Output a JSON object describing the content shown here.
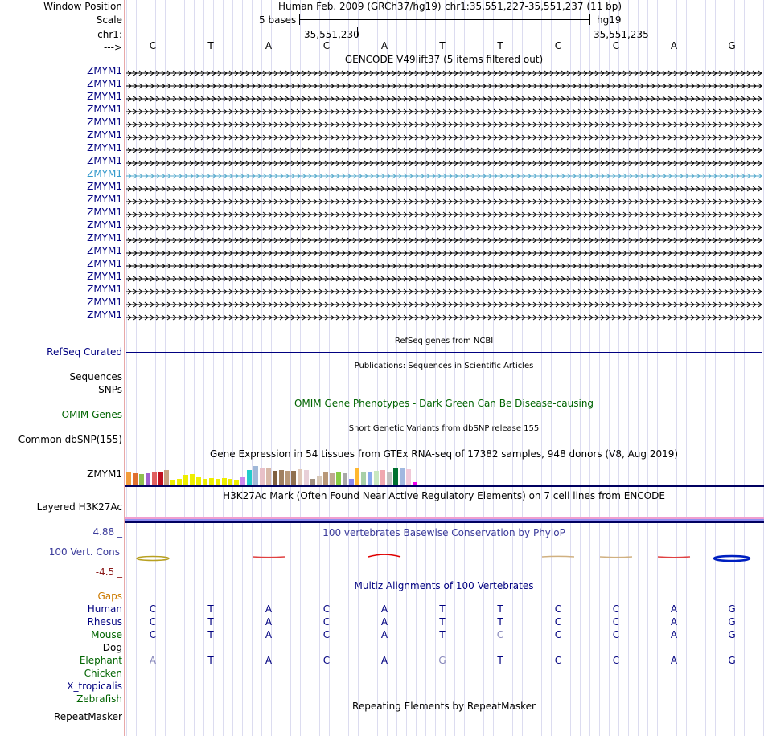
{
  "header": {
    "window_position_label": "Window Position",
    "scale_label": "Scale",
    "chrom_label": "chr1:",
    "strand_label": "--->",
    "assembly_text": "Human Feb. 2009 (GRCh37/hg19)",
    "position_text": "chr1:35,551,227-35,551,237 (11 bp)",
    "scale_text": "5 bases",
    "scale_assembly": "hg19",
    "tick_left": "35,551,230",
    "tick_right": "35,551,235"
  },
  "sequence": [
    "C",
    "T",
    "A",
    "C",
    "A",
    "T",
    "T",
    "C",
    "C",
    "A",
    "G"
  ],
  "gencode": {
    "title": "GENCODE V49lift37 (5 items filtered out)",
    "items": [
      "ZMYM1",
      "ZMYM1",
      "ZMYM1",
      "ZMYM1",
      "ZMYM1",
      "ZMYM1",
      "ZMYM1",
      "ZMYM1",
      "ZMYM1",
      "ZMYM1",
      "ZMYM1",
      "ZMYM1",
      "ZMYM1",
      "ZMYM1",
      "ZMYM1",
      "ZMYM1",
      "ZMYM1",
      "ZMYM1",
      "ZMYM1",
      "ZMYM1"
    ],
    "highlighted_index": 8
  },
  "refseq": {
    "title": "RefSeq genes from NCBI",
    "label": "RefSeq Curated"
  },
  "publications": {
    "title": "Publications: Sequences in Scientific Articles",
    "label_sequences": "Sequences",
    "label_snps": "SNPs"
  },
  "omim": {
    "title": "OMIM Gene Phenotypes - Dark Green Can Be Disease-causing",
    "label": "OMIM Genes"
  },
  "dbsnp": {
    "title": "Short Genetic Variants from dbSNP release 155",
    "label": "Common dbSNP(155)"
  },
  "gtex": {
    "title": "Gene Expression in 54 tissues from GTEx RNA-seq of 17382 samples, 948 donors (V8, Aug 2019)",
    "label": "ZMYM1",
    "bars": [
      {
        "color": "#f39c3b",
        "level": 0.5
      },
      {
        "color": "#e07030",
        "level": 0.48
      },
      {
        "color": "#8fbf50",
        "level": 0.44
      },
      {
        "color": "#a060d0",
        "level": 0.46
      },
      {
        "color": "#e06060",
        "level": 0.5
      },
      {
        "color": "#c01020",
        "level": 0.5
      },
      {
        "color": "#c8a080",
        "level": 0.6
      },
      {
        "color": "#eeee00",
        "level": 0.2
      },
      {
        "color": "#eeee00",
        "level": 0.26
      },
      {
        "color": "#eeee00",
        "level": 0.4
      },
      {
        "color": "#eeee00",
        "level": 0.44
      },
      {
        "color": "#eeee00",
        "level": 0.3
      },
      {
        "color": "#eeee00",
        "level": 0.24
      },
      {
        "color": "#eeee00",
        "level": 0.28
      },
      {
        "color": "#eeee00",
        "level": 0.24
      },
      {
        "color": "#eeee00",
        "level": 0.28
      },
      {
        "color": "#eeee00",
        "level": 0.24
      },
      {
        "color": "#eeee00",
        "level": 0.2
      },
      {
        "color": "#cc88ee",
        "level": 0.3
      },
      {
        "color": "#22cccc",
        "level": 0.58
      },
      {
        "color": "#a0b8d8",
        "level": 0.74
      },
      {
        "color": "#e8c0c8",
        "level": 0.7
      },
      {
        "color": "#d8b8a8",
        "level": 0.66
      },
      {
        "color": "#806040",
        "level": 0.56
      },
      {
        "color": "#a08060",
        "level": 0.6
      },
      {
        "color": "#b89878",
        "level": 0.56
      },
      {
        "color": "#907050",
        "level": 0.56
      },
      {
        "color": "#e0c8b8",
        "level": 0.62
      },
      {
        "color": "#e8d0d8",
        "level": 0.6
      },
      {
        "color": "#a09080",
        "level": 0.26
      },
      {
        "color": "#d8c8b8",
        "level": 0.38
      },
      {
        "color": "#b89878",
        "level": 0.5
      },
      {
        "color": "#c0a890",
        "level": 0.46
      },
      {
        "color": "#88cc44",
        "level": 0.52
      },
      {
        "color": "#a8a8a8",
        "level": 0.46
      },
      {
        "color": "#8888ee",
        "level": 0.26
      },
      {
        "color": "#ffb830",
        "level": 0.68
      },
      {
        "color": "#a8d0a8",
        "level": 0.54
      },
      {
        "color": "#88aaee",
        "level": 0.5
      },
      {
        "color": "#c8e8c0",
        "level": 0.56
      },
      {
        "color": "#f0a8b0",
        "level": 0.6
      },
      {
        "color": "#c0c0c0",
        "level": 0.5
      },
      {
        "color": "#007030",
        "level": 0.68
      },
      {
        "color": "#a0b8e0",
        "level": 0.66
      },
      {
        "color": "#f0c8d8",
        "level": 0.64
      },
      {
        "color": "#ee00ee",
        "level": 0.14
      }
    ]
  },
  "h3k27ac": {
    "title": "H3K27Ac Mark (Often Found Near Active Regulatory Elements) on 7 cell lines from ENCODE",
    "label": "Layered H3K27Ac"
  },
  "cons": {
    "title": "100 vertebrates Basewise Conservation by PhyloP",
    "label": "100 Vert. Cons",
    "max": "4.88 _",
    "min": "-4.5 _",
    "scores": [
      0.5,
      0.0,
      -0.1,
      0.0,
      0.8,
      0.0,
      0.0,
      0.05,
      -0.1,
      -0.2,
      0.9
    ],
    "colors": [
      "#b8a020",
      "#ffffff",
      "#e04040",
      "#ffffff",
      "#e00000",
      "#ffffff",
      "#ffffff",
      "#d0b080",
      "#d0b080",
      "#e04040",
      "#0020c0"
    ]
  },
  "multiz": {
    "title": "Multiz Alignments of 100 Vertebrates",
    "gaps_label": "Gaps",
    "species": [
      {
        "name": "Human",
        "bases": [
          "C",
          "T",
          "A",
          "C",
          "A",
          "T",
          "T",
          "C",
          "C",
          "A",
          "G"
        ]
      },
      {
        "name": "Rhesus",
        "bases": [
          "C",
          "T",
          "A",
          "C",
          "A",
          "T",
          "T",
          "C",
          "C",
          "A",
          "G"
        ]
      },
      {
        "name": "Mouse",
        "bases": [
          "C",
          "T",
          "A",
          "C",
          "A",
          "T",
          "C",
          "C",
          "C",
          "A",
          "G"
        ]
      },
      {
        "name": "Dog",
        "bases": [
          "-",
          "-",
          "-",
          "-",
          "-",
          "-",
          "-",
          "-",
          "-",
          "-",
          "-"
        ]
      },
      {
        "name": "Elephant",
        "bases": [
          "A",
          "T",
          "A",
          "C",
          "A",
          "G",
          "T",
          "C",
          "C",
          "A",
          "G"
        ]
      },
      {
        "name": "Chicken",
        "bases": []
      },
      {
        "name": "X_tropicalis",
        "bases": []
      },
      {
        "name": "Zebrafish",
        "bases": []
      }
    ]
  },
  "repeatmasker": {
    "title": "Repeating Elements by RepeatMasker",
    "label": "RepeatMasker"
  },
  "colors": {
    "navy": "#000080",
    "omim_green": "#006400",
    "gaps_orange": "#cc7a00",
    "highlight": "#3399cc",
    "cons_blue": "#3a3a9a",
    "cons_min": "#8b1a1a"
  }
}
